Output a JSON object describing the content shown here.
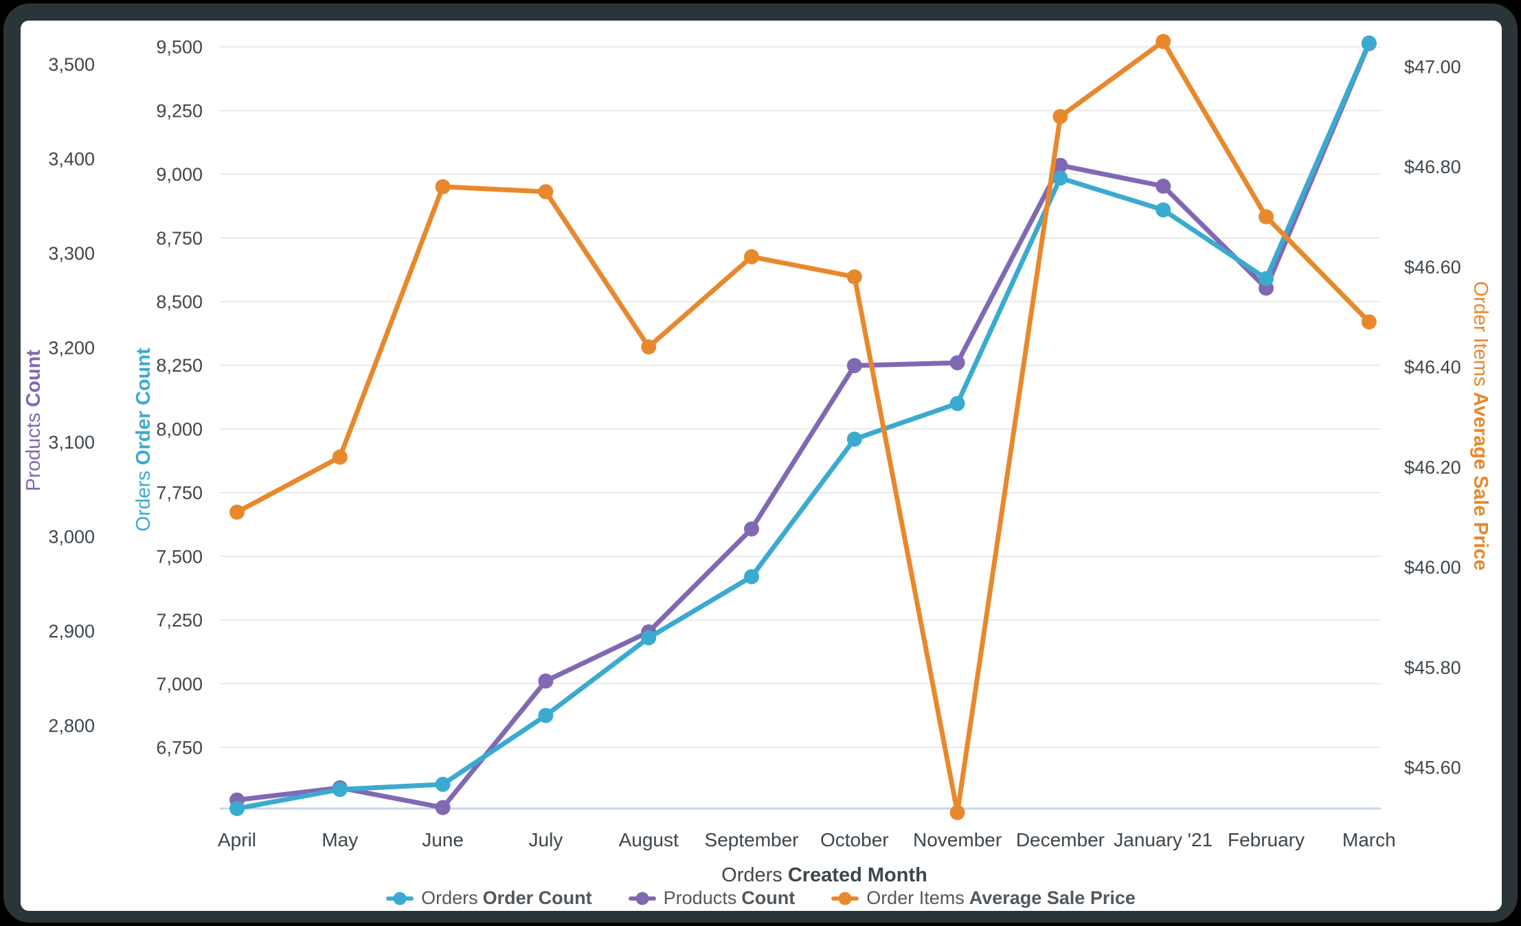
{
  "window": {
    "background": "#000000",
    "frame_color": "#2A3539",
    "card_color": "#FFFFFF"
  },
  "chart_data": {
    "type": "line",
    "title": "",
    "x_categories": [
      "April",
      "May",
      "June",
      "July",
      "August",
      "September",
      "October",
      "November",
      "December",
      "January '21",
      "February",
      "March"
    ],
    "x_axis": {
      "title_normal": "Orders",
      "title_bold": "Created Month"
    },
    "axes": {
      "products": {
        "label_normal": "Products",
        "label_bold": "Count",
        "color": "#8168B3",
        "side": "outer-left",
        "min": 2712,
        "max": 3539,
        "gridlines": false,
        "ticks": [
          {
            "v": 2800,
            "label": "2,800"
          },
          {
            "v": 2900,
            "label": "2,900"
          },
          {
            "v": 3000,
            "label": "3,000"
          },
          {
            "v": 3100,
            "label": "3,100"
          },
          {
            "v": 3200,
            "label": "3,200"
          },
          {
            "v": 3300,
            "label": "3,300"
          },
          {
            "v": 3400,
            "label": "3,400"
          },
          {
            "v": 3500,
            "label": "3,500"
          }
        ]
      },
      "orders": {
        "label_normal": "Orders",
        "label_bold": "Order Count",
        "color": "#3BAACF",
        "side": "inner-left",
        "min": 6510,
        "max": 9576,
        "gridlines": true,
        "ticks": [
          {
            "v": 6750,
            "label": "6,750"
          },
          {
            "v": 7000,
            "label": "7,000"
          },
          {
            "v": 7250,
            "label": "7,250"
          },
          {
            "v": 7500,
            "label": "7,500"
          },
          {
            "v": 7750,
            "label": "7,750"
          },
          {
            "v": 8000,
            "label": "8,000"
          },
          {
            "v": 8250,
            "label": "8,250"
          },
          {
            "v": 8500,
            "label": "8,500"
          },
          {
            "v": 8750,
            "label": "8,750"
          },
          {
            "v": 9000,
            "label": "9,000"
          },
          {
            "v": 9250,
            "label": "9,250"
          },
          {
            "v": 9500,
            "label": "9,500"
          }
        ]
      },
      "price": {
        "label_normal": "Order Items",
        "label_bold": "Average Sale Price",
        "color": "#E8882C",
        "side": "right",
        "min": 45.518,
        "max": 47.078,
        "gridlines": false,
        "ticks": [
          {
            "v": 45.6,
            "label": "$45.60"
          },
          {
            "v": 45.8,
            "label": "$45.80"
          },
          {
            "v": 46.0,
            "label": "$46.00"
          },
          {
            "v": 46.2,
            "label": "$46.20"
          },
          {
            "v": 46.4,
            "label": "$46.40"
          },
          {
            "v": 46.6,
            "label": "$46.60"
          },
          {
            "v": 46.8,
            "label": "$46.80"
          },
          {
            "v": 47.0,
            "label": "$47.00"
          }
        ]
      }
    },
    "series": [
      {
        "id": "orders",
        "axis": "orders",
        "color": "#3BAACF",
        "legend_normal": "Orders",
        "legend_bold": "Order Count",
        "values": [
          6510,
          6585,
          6605,
          6875,
          7180,
          7420,
          7960,
          8100,
          8985,
          8860,
          8590,
          9515
        ]
      },
      {
        "id": "products",
        "axis": "products",
        "color": "#8168B3",
        "legend_normal": "Products",
        "legend_bold": "Count",
        "values": [
          2721,
          2734,
          2713,
          2847,
          2899,
          3008,
          3181,
          3184,
          3393,
          3371,
          3263,
          3522
        ]
      },
      {
        "id": "price",
        "axis": "price",
        "color": "#E8882C",
        "legend_normal": "Order Items",
        "legend_bold": "Average Sale Price",
        "values": [
          46.11,
          46.22,
          46.76,
          46.75,
          46.44,
          46.62,
          46.58,
          45.51,
          46.9,
          47.05,
          46.7,
          46.49
        ]
      }
    ],
    "legend_position": "bottom",
    "grid_color": "#E9E9E9",
    "baseline_color": "#C9D6EA",
    "text_color": "#3E464C",
    "legend_text_color": "#50585E"
  }
}
